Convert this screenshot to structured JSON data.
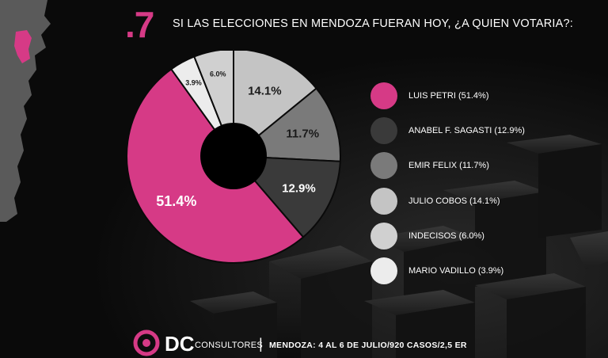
{
  "slide_number": ".7",
  "title": "SI LAS ELECCIONES EN MENDOZA FUERAN HOY, ¿A QUIEN VOTARIA?:",
  "chart_data": {
    "type": "pie",
    "title": "SI LAS ELECCIONES EN MENDOZA FUERAN HOY, ¿A QUIEN VOTARIA?:",
    "categories": [
      "LUIS PETRI",
      "ANABEL F. SAGASTI",
      "EMIR FELIX",
      "JULIO COBOS",
      "INDECISOS",
      "MARIO VADILLO"
    ],
    "values": [
      51.4,
      12.9,
      11.7,
      14.1,
      6.0,
      3.9
    ],
    "value_labels": [
      "51.4%",
      "12.9%",
      "11.7%",
      "14.1%",
      "6.0%",
      "3.9%"
    ],
    "colors": [
      "#d63a86",
      "#3a3a3a",
      "#7a7a7a",
      "#c4c4c4",
      "#d0d0d0",
      "#ececec"
    ],
    "label_colors": [
      "#ffffff",
      "#ffffff",
      "#1a1a1a",
      "#1a1a1a",
      "#1a1a1a",
      "#1a1a1a"
    ],
    "legend": {
      "position": "right",
      "entries": [
        "LUIS PETRI (51.4%)",
        "ANABEL F. SAGASTI (12.9%)",
        "EMIR FELIX (11.7%)",
        "JULIO COBOS (14.1%)",
        "INDECISOS (6.0%)",
        "MARIO VADILLO (3.9%)"
      ]
    },
    "donut": true
  },
  "footer": {
    "brand": "DC",
    "brand_sub": "CONSULTORES",
    "separator": "|",
    "info": "MENDOZA: 4 AL 6 DE JULIO/920 CASOS/2,5 ER"
  },
  "map": {
    "icon": "argentina-map-icon",
    "highlight_color": "#d63a86"
  }
}
